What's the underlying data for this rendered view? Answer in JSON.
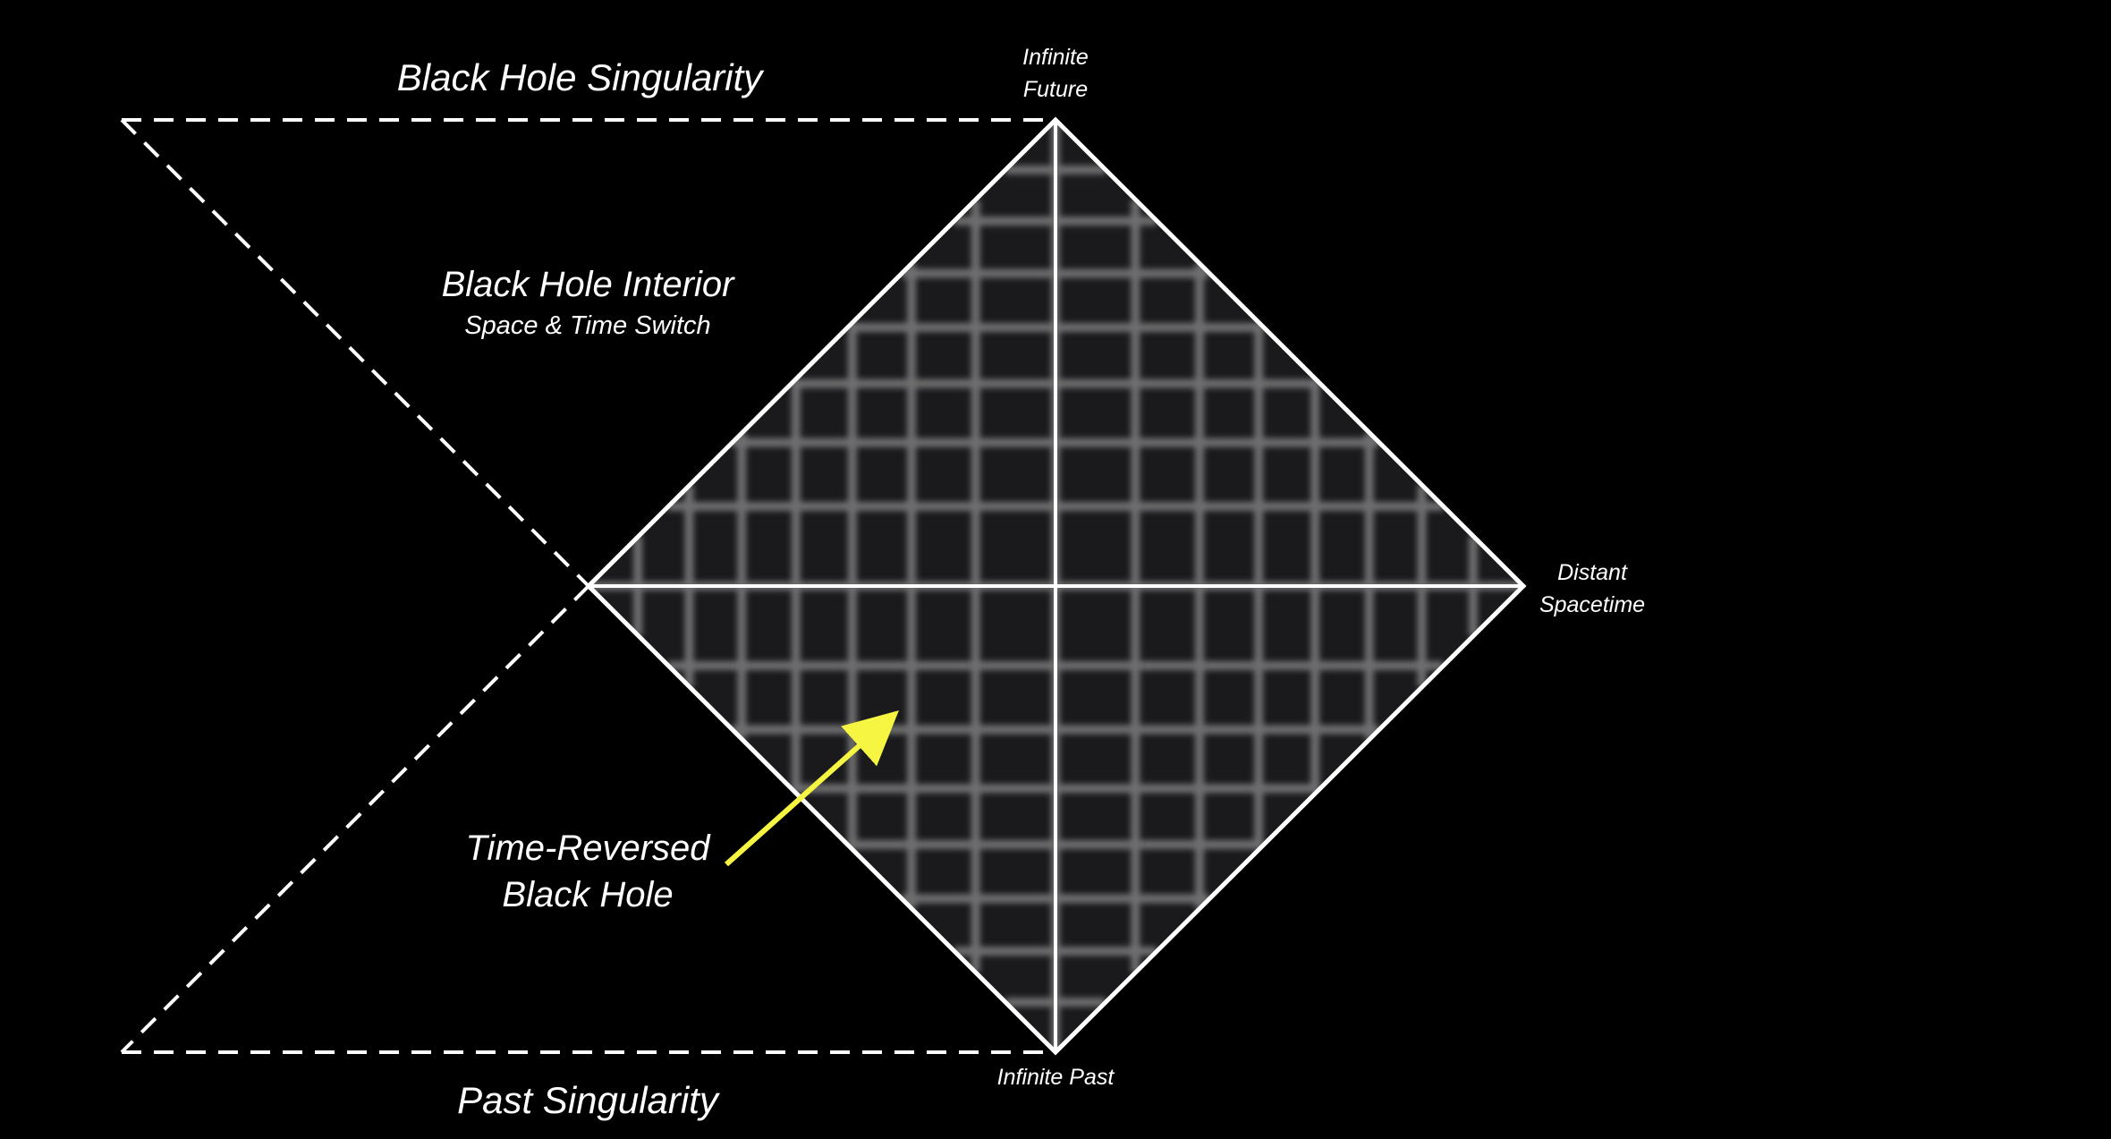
{
  "labels": {
    "black_hole_singularity": "Black Hole Singularity",
    "black_hole_interior": "Black Hole Interior",
    "space_time_switch": "Space & Time Switch",
    "infinite_future_line1": "Infinite",
    "infinite_future_line2": "Future",
    "distant_line1": "Distant",
    "distant_line2": "Spacetime",
    "infinite_past": "Infinite Past",
    "past_singularity": "Past Singularity",
    "time_reversed_line1": "Time-Reversed",
    "time_reversed_line2": "Black Hole"
  },
  "colors": {
    "background": "#000000",
    "line": "#ffffff",
    "grid": "#6e6e70",
    "diamond_fill": "#1a1a1d",
    "arrow": "#f5f542"
  }
}
